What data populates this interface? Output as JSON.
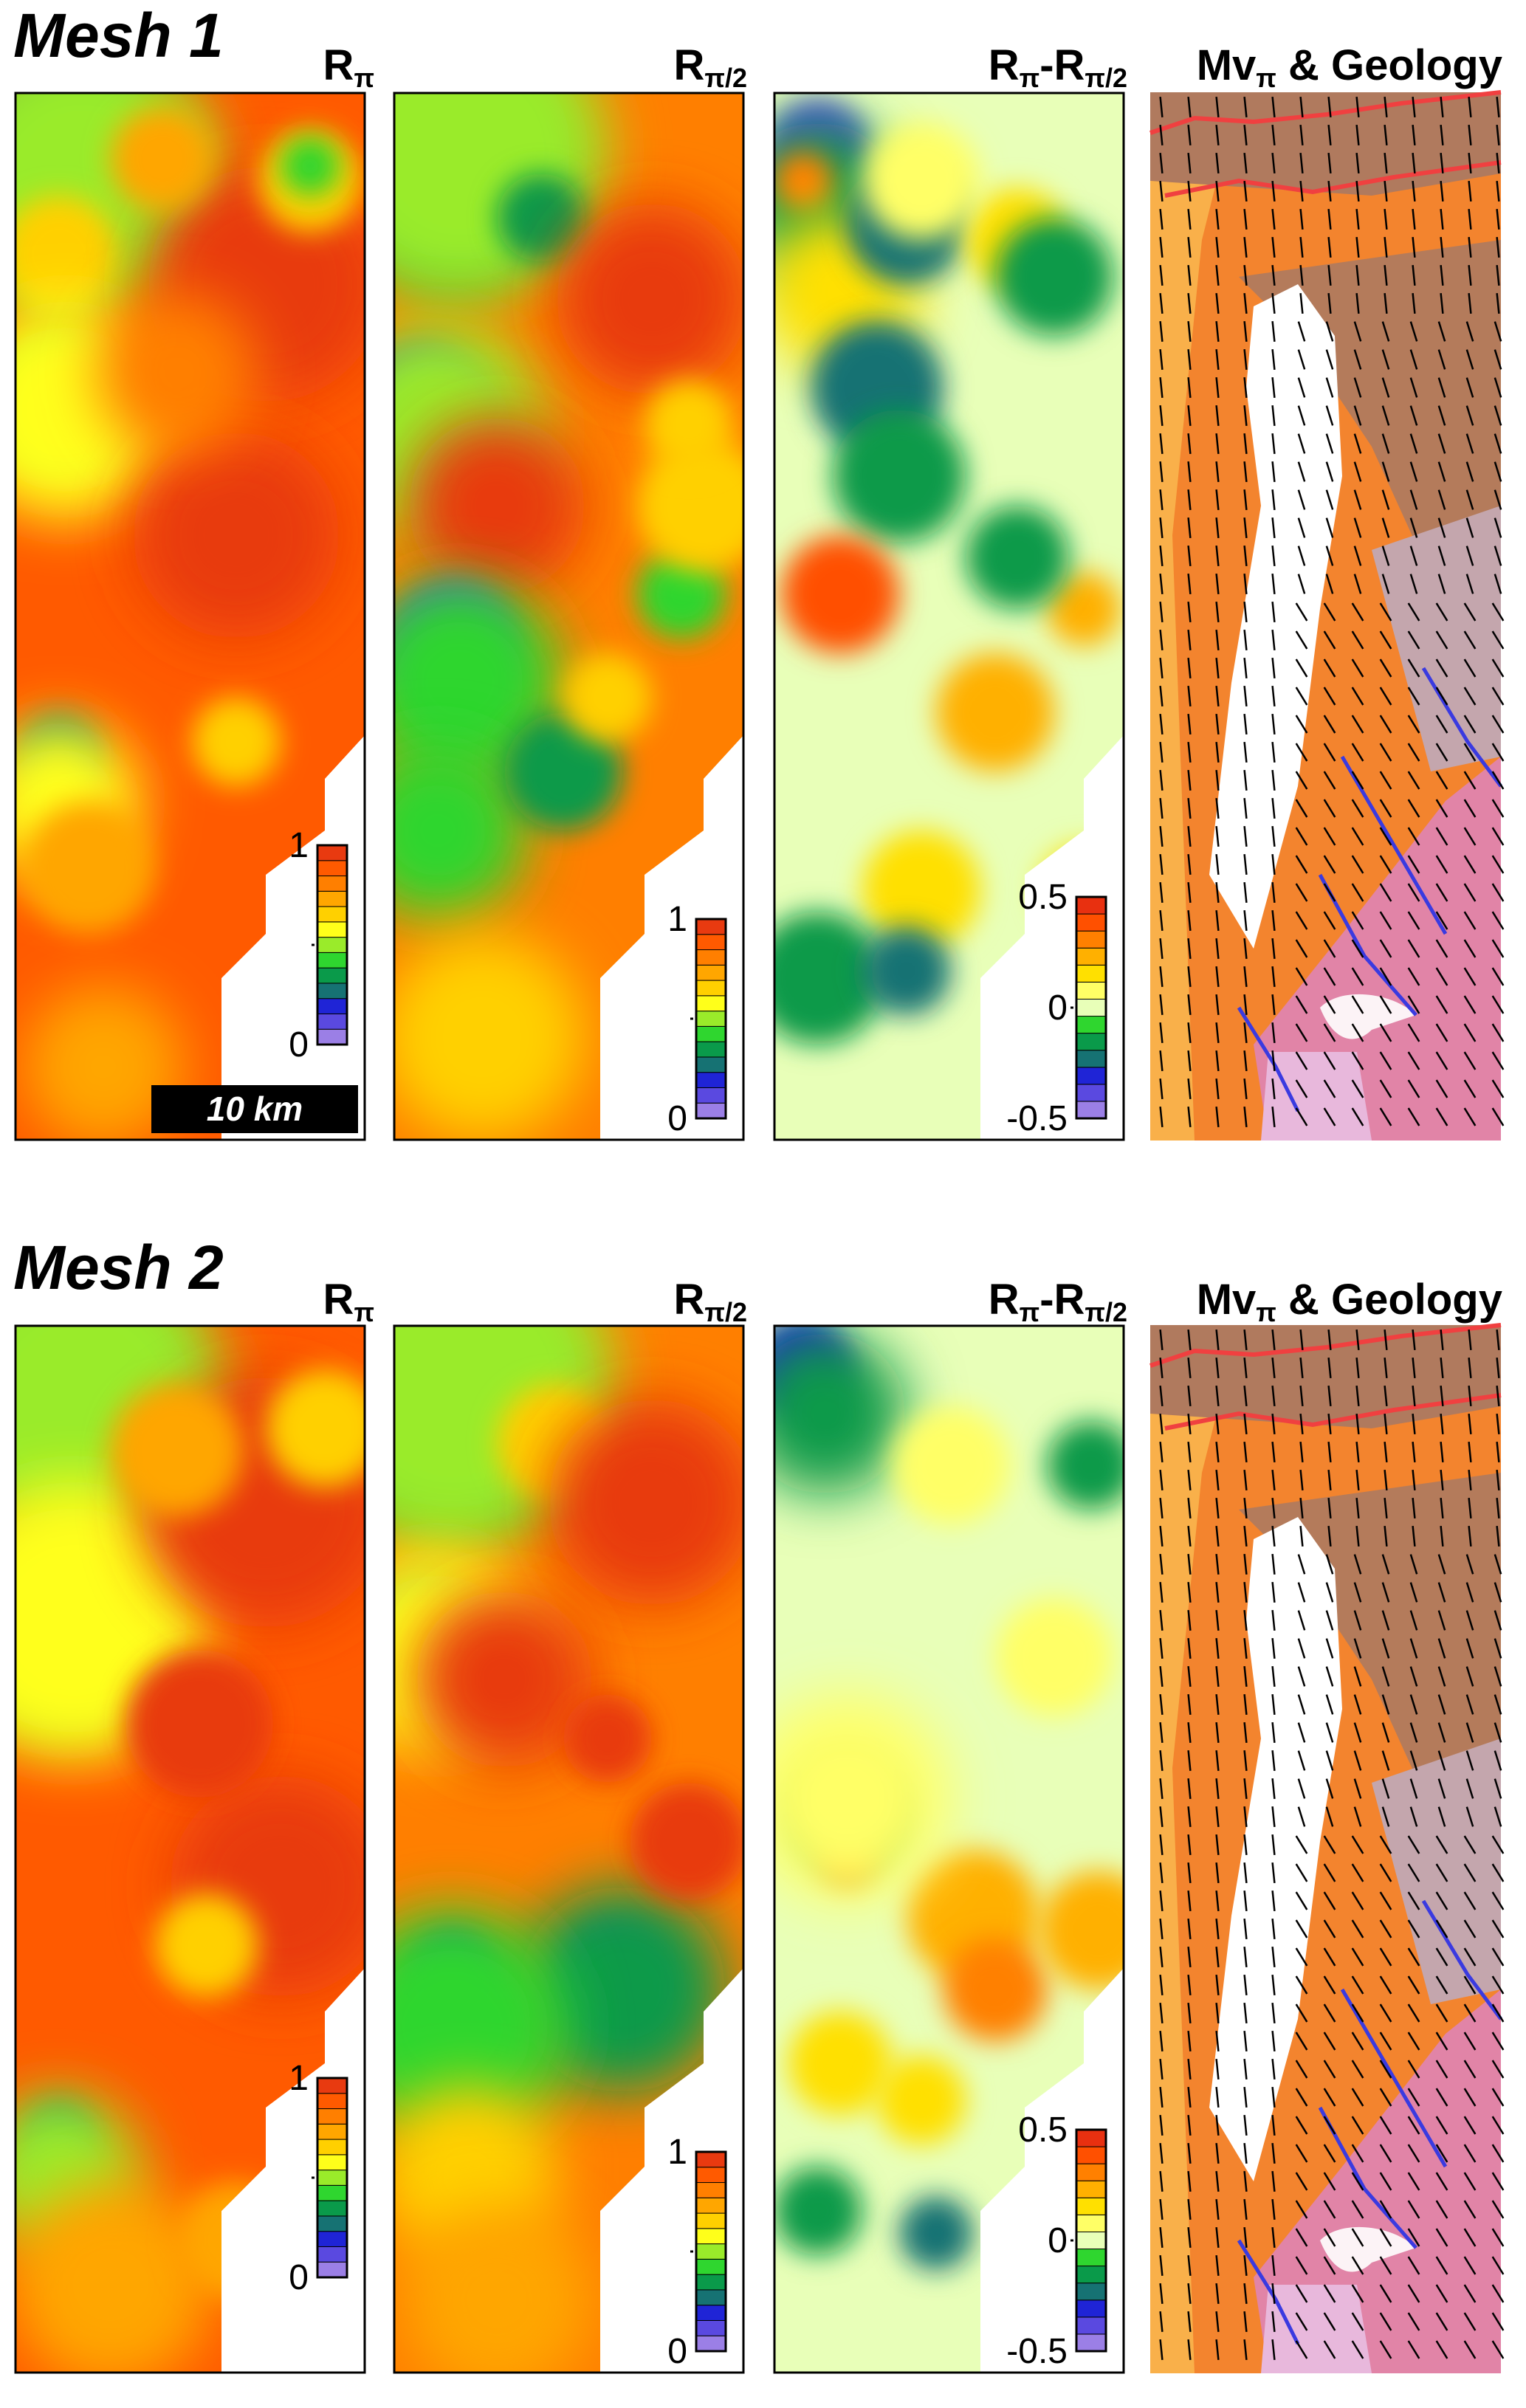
{
  "meshes": [
    {
      "title": "Mesh 1",
      "panels": [
        {
          "main": "R",
          "sub": "π"
        },
        {
          "main": "R",
          "sub": "π/2"
        },
        {
          "main": "R",
          "sub": "π",
          "dash": "-R",
          "sub2": "π/2"
        },
        {
          "main": "Mv",
          "sub": "π",
          "rest": " & Geology"
        }
      ],
      "scale_bar": "10 km"
    },
    {
      "title": "Mesh 2",
      "panels": [
        {
          "main": "R",
          "sub": "π"
        },
        {
          "main": "R",
          "sub": "π/2"
        },
        {
          "main": "R",
          "sub": "π",
          "dash": "-R",
          "sub2": "π/2"
        },
        {
          "main": "Mv",
          "sub": "π",
          "rest": " & Geology"
        }
      ]
    }
  ],
  "colorbars": {
    "ratio": {
      "max": "1",
      "min": "0"
    },
    "diff": {
      "max": "0.5",
      "mid": "0",
      "min": "-0.5"
    }
  },
  "colors": {
    "ratio_scale": [
      "#9b7fe6",
      "#5a49e0",
      "#1f24d6",
      "#167273",
      "#0a9a4a",
      "#2fd62f",
      "#9aeb2a",
      "#ffff1a",
      "#ffd000",
      "#ffa600",
      "#ff7f00",
      "#ff5a00",
      "#e83a10"
    ],
    "diff_scale": [
      "#9b7fe6",
      "#5a49e0",
      "#1f24d6",
      "#167273",
      "#0a9a4a",
      "#2fd62f",
      "#e8ffb8",
      "#ffff66",
      "#ffe000",
      "#ffb000",
      "#ff8000",
      "#ff5000",
      "#e83010"
    ],
    "geology": {
      "brown": "#b07a5e",
      "orange": "#f3842e",
      "light_orange": "#f9b04a",
      "grey_mauve": "#c4a6ad",
      "pink": "#e184a7",
      "lilac": "#e8b8dc",
      "fault_red": "#f04040",
      "fault_blue": "#3a3ae0"
    }
  }
}
